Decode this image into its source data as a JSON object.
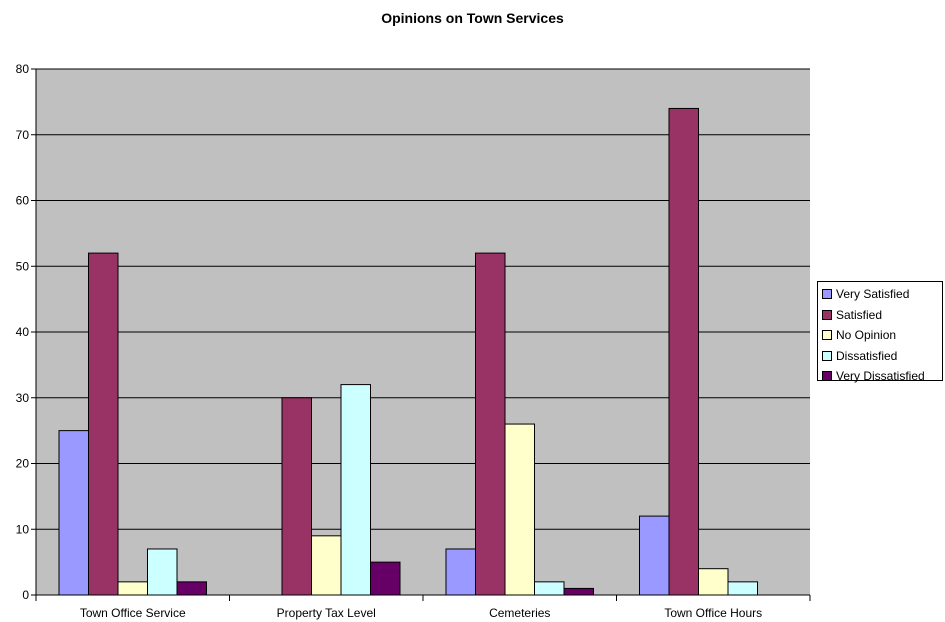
{
  "chart_data": {
    "type": "bar",
    "title": "Opinions on Town Services",
    "xlabel": "",
    "ylabel": "",
    "ylim": [
      0,
      80
    ],
    "yticks": [
      0,
      10,
      20,
      30,
      40,
      50,
      60,
      70,
      80
    ],
    "categories": [
      "Town Office Service",
      "Property Tax Level",
      "Cemeteries",
      "Town Office Hours"
    ],
    "series": [
      {
        "name": "Very Satisfied",
        "color": "#9999ff",
        "values": [
          25,
          0,
          7,
          12
        ]
      },
      {
        "name": "Satisfied",
        "color": "#993366",
        "values": [
          52,
          30,
          52,
          74
        ]
      },
      {
        "name": "No Opinion",
        "color": "#ffffcc",
        "values": [
          2,
          9,
          26,
          4
        ]
      },
      {
        "name": "Dissatisfied",
        "color": "#ccffff",
        "values": [
          7,
          32,
          2,
          2
        ]
      },
      {
        "name": "Very Dissatisfied",
        "color": "#660066",
        "values": [
          2,
          5,
          1,
          0
        ]
      }
    ],
    "grid": true,
    "plot_background": "#c0c0c0",
    "legend_position": "right"
  }
}
